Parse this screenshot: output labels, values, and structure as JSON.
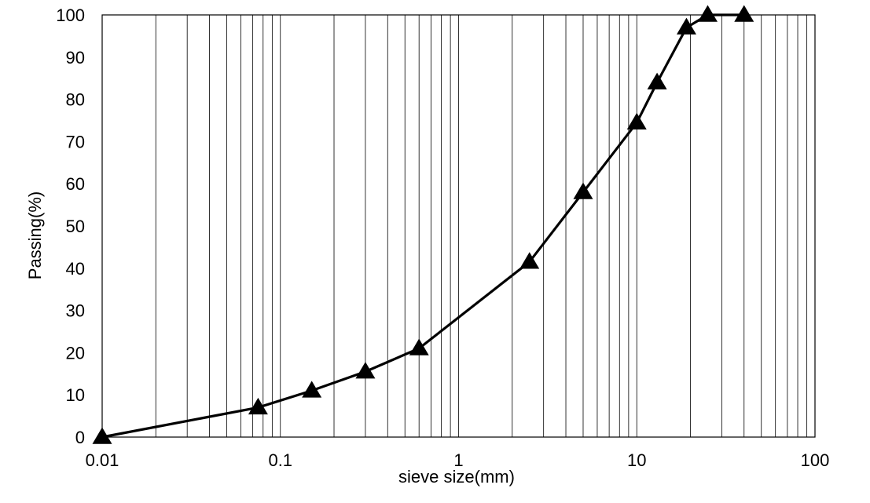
{
  "chart_data": {
    "type": "line",
    "title": "",
    "xlabel": "sieve size(mm)",
    "ylabel": "Passing(%)",
    "x_scale": "log",
    "xlim": [
      0.01,
      100
    ],
    "ylim": [
      0,
      100
    ],
    "x_ticks": [
      "0.01",
      "0.1",
      "1",
      "10",
      "100"
    ],
    "y_ticks": [
      "0",
      "10",
      "20",
      "30",
      "40",
      "50",
      "60",
      "70",
      "80",
      "90",
      "100"
    ],
    "grid": {
      "x_minor": true,
      "y": false
    },
    "legend": "none",
    "marker": "triangle",
    "color": "#000000",
    "series": [
      {
        "x": [
          0.01,
          0.075,
          0.15,
          0.3,
          0.6,
          2.5,
          5,
          10,
          13,
          19,
          25,
          40
        ],
        "y": [
          0,
          7,
          11,
          15.5,
          21,
          41.5,
          58,
          74.5,
          84,
          97,
          100,
          100
        ]
      }
    ]
  }
}
